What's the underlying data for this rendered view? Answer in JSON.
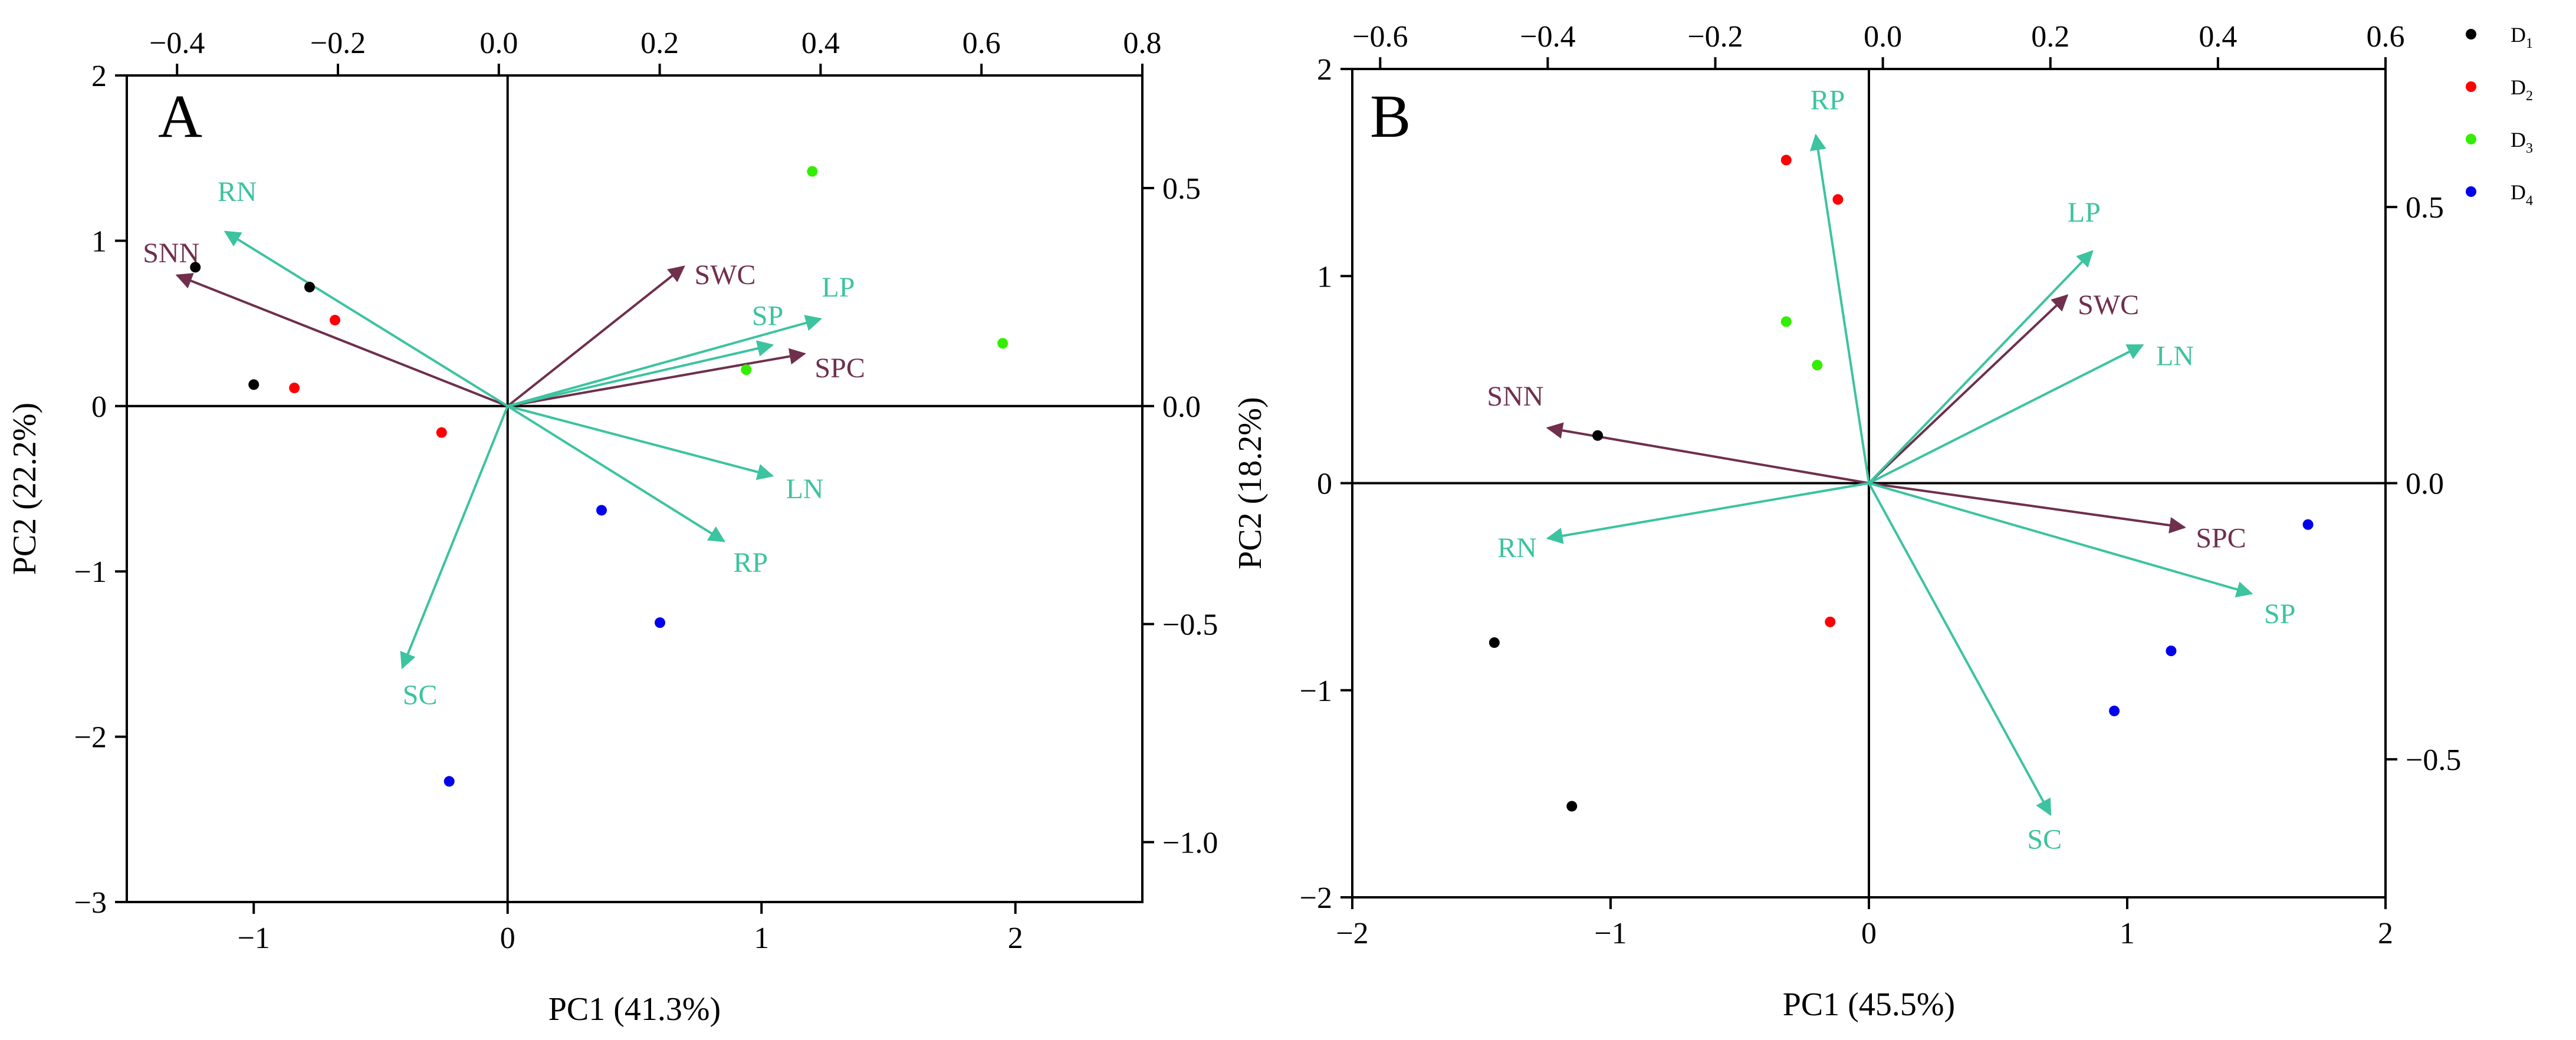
{
  "colors": {
    "D1": "#000000",
    "D2": "#ff0000",
    "D3": "#33ee00",
    "D4": "#0000ee",
    "teal": "#3cc3a0",
    "maroon": "#6f2f4d"
  },
  "legend": [
    {
      "key": "D1",
      "base": "D",
      "sub": "1"
    },
    {
      "key": "D2",
      "base": "D",
      "sub": "2"
    },
    {
      "key": "D3",
      "base": "D",
      "sub": "3"
    },
    {
      "key": "D4",
      "base": "D",
      "sub": "4"
    }
  ],
  "chart_data": [
    {
      "type": "scatter",
      "panel_letter": "A",
      "xlabel": "PC1 (41.3%)",
      "ylabel": "PC2 (22.2%)",
      "xlim": [
        -1.5,
        2.5
      ],
      "ylim": [
        -3,
        2
      ],
      "xticks": [
        -1,
        0,
        1,
        2
      ],
      "yticks": [
        -3,
        -2,
        -1,
        0,
        1,
        2
      ],
      "top_axis": {
        "lim": [
          -0.4625,
          0.8
        ],
        "ticks": [
          -0.4,
          -0.2,
          0.0,
          0.2,
          0.4,
          0.6,
          0.8
        ],
        "labels": [
          "−0.4",
          "−0.2",
          "0.0",
          "0.2",
          "0.4",
          "0.6",
          "0.8"
        ]
      },
      "right_axis": {
        "lim": [
          -1.1375,
          0.7583
        ],
        "ticks": [
          -1.0,
          -0.5,
          0.0,
          0.5
        ],
        "labels": [
          "−1.0",
          "−0.5",
          "0.0",
          "0.5"
        ]
      },
      "points": [
        {
          "group": "D1",
          "x": -1.23,
          "y": 0.84
        },
        {
          "group": "D1",
          "x": -0.78,
          "y": 0.72
        },
        {
          "group": "D1",
          "x": -1.0,
          "y": 0.13
        },
        {
          "group": "D2",
          "x": -0.68,
          "y": 0.52
        },
        {
          "group": "D2",
          "x": -0.84,
          "y": 0.11
        },
        {
          "group": "D2",
          "x": -0.26,
          "y": -0.16
        },
        {
          "group": "D3",
          "x": 1.2,
          "y": 1.42
        },
        {
          "group": "D3",
          "x": 1.95,
          "y": 0.38
        },
        {
          "group": "D3",
          "x": 0.94,
          "y": 0.22
        },
        {
          "group": "D4",
          "x": 0.37,
          "y": -0.63
        },
        {
          "group": "D4",
          "x": 0.6,
          "y": -1.31
        },
        {
          "group": "D4",
          "x": -0.23,
          "y": -2.27
        }
      ],
      "loadings": [
        {
          "name": "SWC",
          "x": 0.23,
          "y": 0.32,
          "color": "maroon",
          "label": "SWC"
        },
        {
          "name": "SNN",
          "x": -0.4,
          "y": 0.3,
          "color": "maroon",
          "label": "SNN"
        },
        {
          "name": "SPC",
          "x": 0.38,
          "y": 0.12,
          "color": "maroon",
          "label": "SPC"
        },
        {
          "name": "RN",
          "x": -0.34,
          "y": 0.4,
          "color": "teal",
          "label": "RN"
        },
        {
          "name": "LP",
          "x": 0.4,
          "y": 0.2,
          "color": "teal",
          "label": "LP"
        },
        {
          "name": "SP",
          "x": 0.34,
          "y": 0.14,
          "color": "teal",
          "label": "SP"
        },
        {
          "name": "LN",
          "x": 0.34,
          "y": -0.16,
          "color": "teal",
          "label": "LN"
        },
        {
          "name": "RP",
          "x": 0.28,
          "y": -0.31,
          "color": "teal",
          "label": "RP"
        },
        {
          "name": "SC",
          "x": -0.12,
          "y": -0.6,
          "color": "teal",
          "label": "SC"
        }
      ]
    },
    {
      "type": "scatter",
      "panel_letter": "B",
      "xlabel": "PC1 (45.5%)",
      "ylabel": "PC2 (18.2%)",
      "xlim": [
        -2,
        2
      ],
      "ylim": [
        -2,
        2
      ],
      "xticks": [
        -2,
        -1,
        0,
        1,
        2
      ],
      "yticks": [
        -2,
        -1,
        0,
        1,
        2
      ],
      "top_axis": {
        "lim": [
          -0.6333,
          0.6
        ],
        "ticks": [
          -0.6,
          -0.4,
          -0.2,
          0.0,
          0.2,
          0.4,
          0.6
        ],
        "labels": [
          "−0.6",
          "−0.4",
          "−0.2",
          "0.0",
          "0.2",
          "0.4",
          "0.6"
        ]
      },
      "right_axis": {
        "lim": [
          -0.75,
          0.75
        ],
        "ticks": [
          -0.5,
          0.0,
          0.5
        ],
        "labels": [
          "−0.5",
          "0.0",
          "0.5"
        ]
      },
      "points": [
        {
          "group": "D1",
          "x": -1.05,
          "y": 0.23
        },
        {
          "group": "D1",
          "x": -1.45,
          "y": -0.77
        },
        {
          "group": "D1",
          "x": -1.15,
          "y": -1.56
        },
        {
          "group": "D2",
          "x": -0.32,
          "y": 1.56
        },
        {
          "group": "D2",
          "x": -0.12,
          "y": 1.37
        },
        {
          "group": "D2",
          "x": -0.15,
          "y": -0.67
        },
        {
          "group": "D3",
          "x": -0.32,
          "y": 0.78
        },
        {
          "group": "D3",
          "x": -0.2,
          "y": 0.57
        },
        {
          "group": "D4",
          "x": 1.7,
          "y": -0.2
        },
        {
          "group": "D4",
          "x": 1.17,
          "y": -0.81
        },
        {
          "group": "D4",
          "x": 0.95,
          "y": -1.1
        }
      ],
      "loadings": [
        {
          "name": "SWC",
          "x": 0.22,
          "y": 0.34,
          "color": "maroon",
          "label": "SWC"
        },
        {
          "name": "SNN",
          "x": -0.4,
          "y": 0.1,
          "color": "maroon",
          "label": "SNN"
        },
        {
          "name": "SPC",
          "x": 0.36,
          "y": -0.08,
          "color": "maroon",
          "label": "SPC"
        },
        {
          "name": "RP",
          "x": -0.08,
          "y": 0.63,
          "color": "teal",
          "label": "RP"
        },
        {
          "name": "LP",
          "x": 0.25,
          "y": 0.42,
          "color": "teal",
          "label": "LP"
        },
        {
          "name": "LN",
          "x": 0.31,
          "y": 0.25,
          "color": "teal",
          "label": "LN"
        },
        {
          "name": "SP",
          "x": 0.44,
          "y": -0.2,
          "color": "teal",
          "label": "SP"
        },
        {
          "name": "RN",
          "x": -0.4,
          "y": -0.1,
          "color": "teal",
          "label": "RN"
        },
        {
          "name": "SC",
          "x": 0.2,
          "y": -0.6,
          "color": "teal",
          "label": "SC"
        }
      ]
    }
  ]
}
